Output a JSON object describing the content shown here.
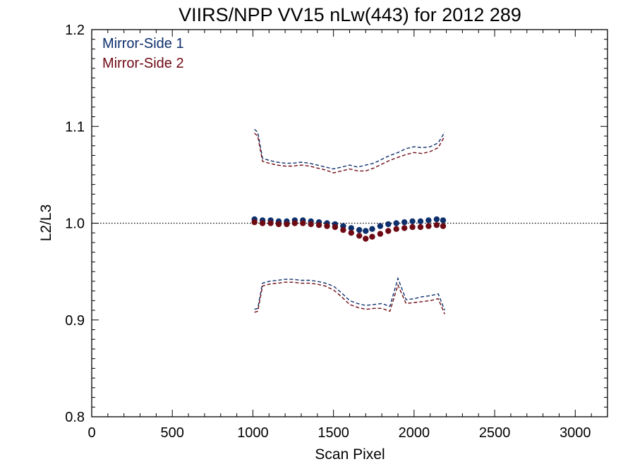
{
  "chart_data": {
    "type": "scatter",
    "title": "VIIRS/NPP VV15 nLw(443) for 2012 289",
    "xlabel": "Scan Pixel",
    "ylabel": "L2/L3",
    "xlim": [
      0,
      3200
    ],
    "ylim": [
      0.8,
      1.2
    ],
    "x_ticks": [
      0,
      500,
      1000,
      1500,
      2000,
      2500,
      3000
    ],
    "x_tick_labels": [
      "0",
      "500",
      "1000",
      "1500",
      "2000",
      "2500",
      "3000"
    ],
    "y_ticks": [
      0.8,
      0.9,
      1.0,
      1.1,
      1.2
    ],
    "y_tick_labels": [
      "0.8",
      "0.9",
      "1.0",
      "1.1",
      "1.2"
    ],
    "grid": false,
    "legend_position": "top-left",
    "reference_line": {
      "y": 1.0,
      "style": "dotted"
    },
    "colors": {
      "series1": "#0d2f6b",
      "series2": "#6e0a14"
    },
    "series": [
      {
        "name": "Mirror-Side 1",
        "points": {
          "x": [
            1010,
            1060,
            1110,
            1160,
            1210,
            1260,
            1310,
            1360,
            1410,
            1460,
            1510,
            1560,
            1610,
            1660,
            1700,
            1740,
            1790,
            1840,
            1890,
            1940,
            1990,
            2040,
            2090,
            2140,
            2180
          ],
          "y": [
            1.004,
            1.003,
            1.003,
            1.002,
            1.002,
            1.003,
            1.003,
            1.002,
            1.001,
            1.0,
            0.999,
            0.997,
            0.995,
            0.993,
            0.992,
            0.994,
            0.997,
            0.999,
            1.0,
            1.001,
            1.002,
            1.002,
            1.003,
            1.004,
            1.003
          ]
        },
        "upper": {
          "x": [
            1010,
            1030,
            1060,
            1100,
            1150,
            1200,
            1250,
            1300,
            1350,
            1400,
            1450,
            1500,
            1550,
            1600,
            1650,
            1700,
            1750,
            1800,
            1850,
            1900,
            1950,
            2000,
            2050,
            2100,
            2150,
            2190
          ],
          "y": [
            1.097,
            1.094,
            1.067,
            1.065,
            1.063,
            1.062,
            1.062,
            1.063,
            1.062,
            1.06,
            1.058,
            1.056,
            1.058,
            1.06,
            1.058,
            1.06,
            1.062,
            1.066,
            1.07,
            1.073,
            1.077,
            1.079,
            1.078,
            1.079,
            1.083,
            1.094
          ]
        },
        "lower": {
          "x": [
            1010,
            1030,
            1060,
            1100,
            1150,
            1200,
            1250,
            1300,
            1350,
            1400,
            1450,
            1500,
            1550,
            1600,
            1650,
            1700,
            1750,
            1800,
            1850,
            1900,
            1950,
            2000,
            2050,
            2100,
            2150,
            2190
          ],
          "y": [
            0.911,
            0.912,
            0.938,
            0.94,
            0.941,
            0.942,
            0.942,
            0.941,
            0.941,
            0.94,
            0.938,
            0.935,
            0.928,
            0.92,
            0.917,
            0.915,
            0.916,
            0.917,
            0.914,
            0.943,
            0.921,
            0.922,
            0.924,
            0.925,
            0.927,
            0.91
          ]
        }
      },
      {
        "name": "Mirror-Side 2",
        "points": {
          "x": [
            1010,
            1060,
            1110,
            1160,
            1210,
            1260,
            1310,
            1360,
            1410,
            1460,
            1510,
            1560,
            1610,
            1660,
            1700,
            1740,
            1790,
            1840,
            1890,
            1940,
            1990,
            2040,
            2090,
            2140,
            2180
          ],
          "y": [
            1.001,
            1.0,
            1.0,
            0.999,
            0.999,
            1.0,
            1.0,
            0.999,
            0.998,
            0.997,
            0.996,
            0.993,
            0.99,
            0.987,
            0.984,
            0.986,
            0.989,
            0.992,
            0.994,
            0.995,
            0.996,
            0.996,
            0.997,
            0.998,
            0.997
          ]
        },
        "upper": {
          "x": [
            1010,
            1030,
            1060,
            1100,
            1150,
            1200,
            1250,
            1300,
            1350,
            1400,
            1450,
            1500,
            1550,
            1600,
            1650,
            1700,
            1750,
            1800,
            1850,
            1900,
            1950,
            2000,
            2050,
            2100,
            2150,
            2190
          ],
          "y": [
            1.093,
            1.09,
            1.064,
            1.062,
            1.06,
            1.059,
            1.059,
            1.06,
            1.059,
            1.057,
            1.055,
            1.052,
            1.054,
            1.056,
            1.054,
            1.054,
            1.057,
            1.061,
            1.065,
            1.068,
            1.071,
            1.073,
            1.072,
            1.074,
            1.078,
            1.09
          ]
        },
        "lower": {
          "x": [
            1010,
            1030,
            1060,
            1100,
            1150,
            1200,
            1250,
            1300,
            1350,
            1400,
            1450,
            1500,
            1550,
            1600,
            1650,
            1700,
            1750,
            1800,
            1850,
            1900,
            1950,
            2000,
            2050,
            2100,
            2150,
            2190
          ],
          "y": [
            0.908,
            0.909,
            0.935,
            0.937,
            0.938,
            0.939,
            0.939,
            0.938,
            0.938,
            0.937,
            0.935,
            0.931,
            0.924,
            0.916,
            0.913,
            0.911,
            0.912,
            0.912,
            0.909,
            0.936,
            0.917,
            0.918,
            0.919,
            0.92,
            0.922,
            0.906
          ]
        }
      }
    ]
  }
}
